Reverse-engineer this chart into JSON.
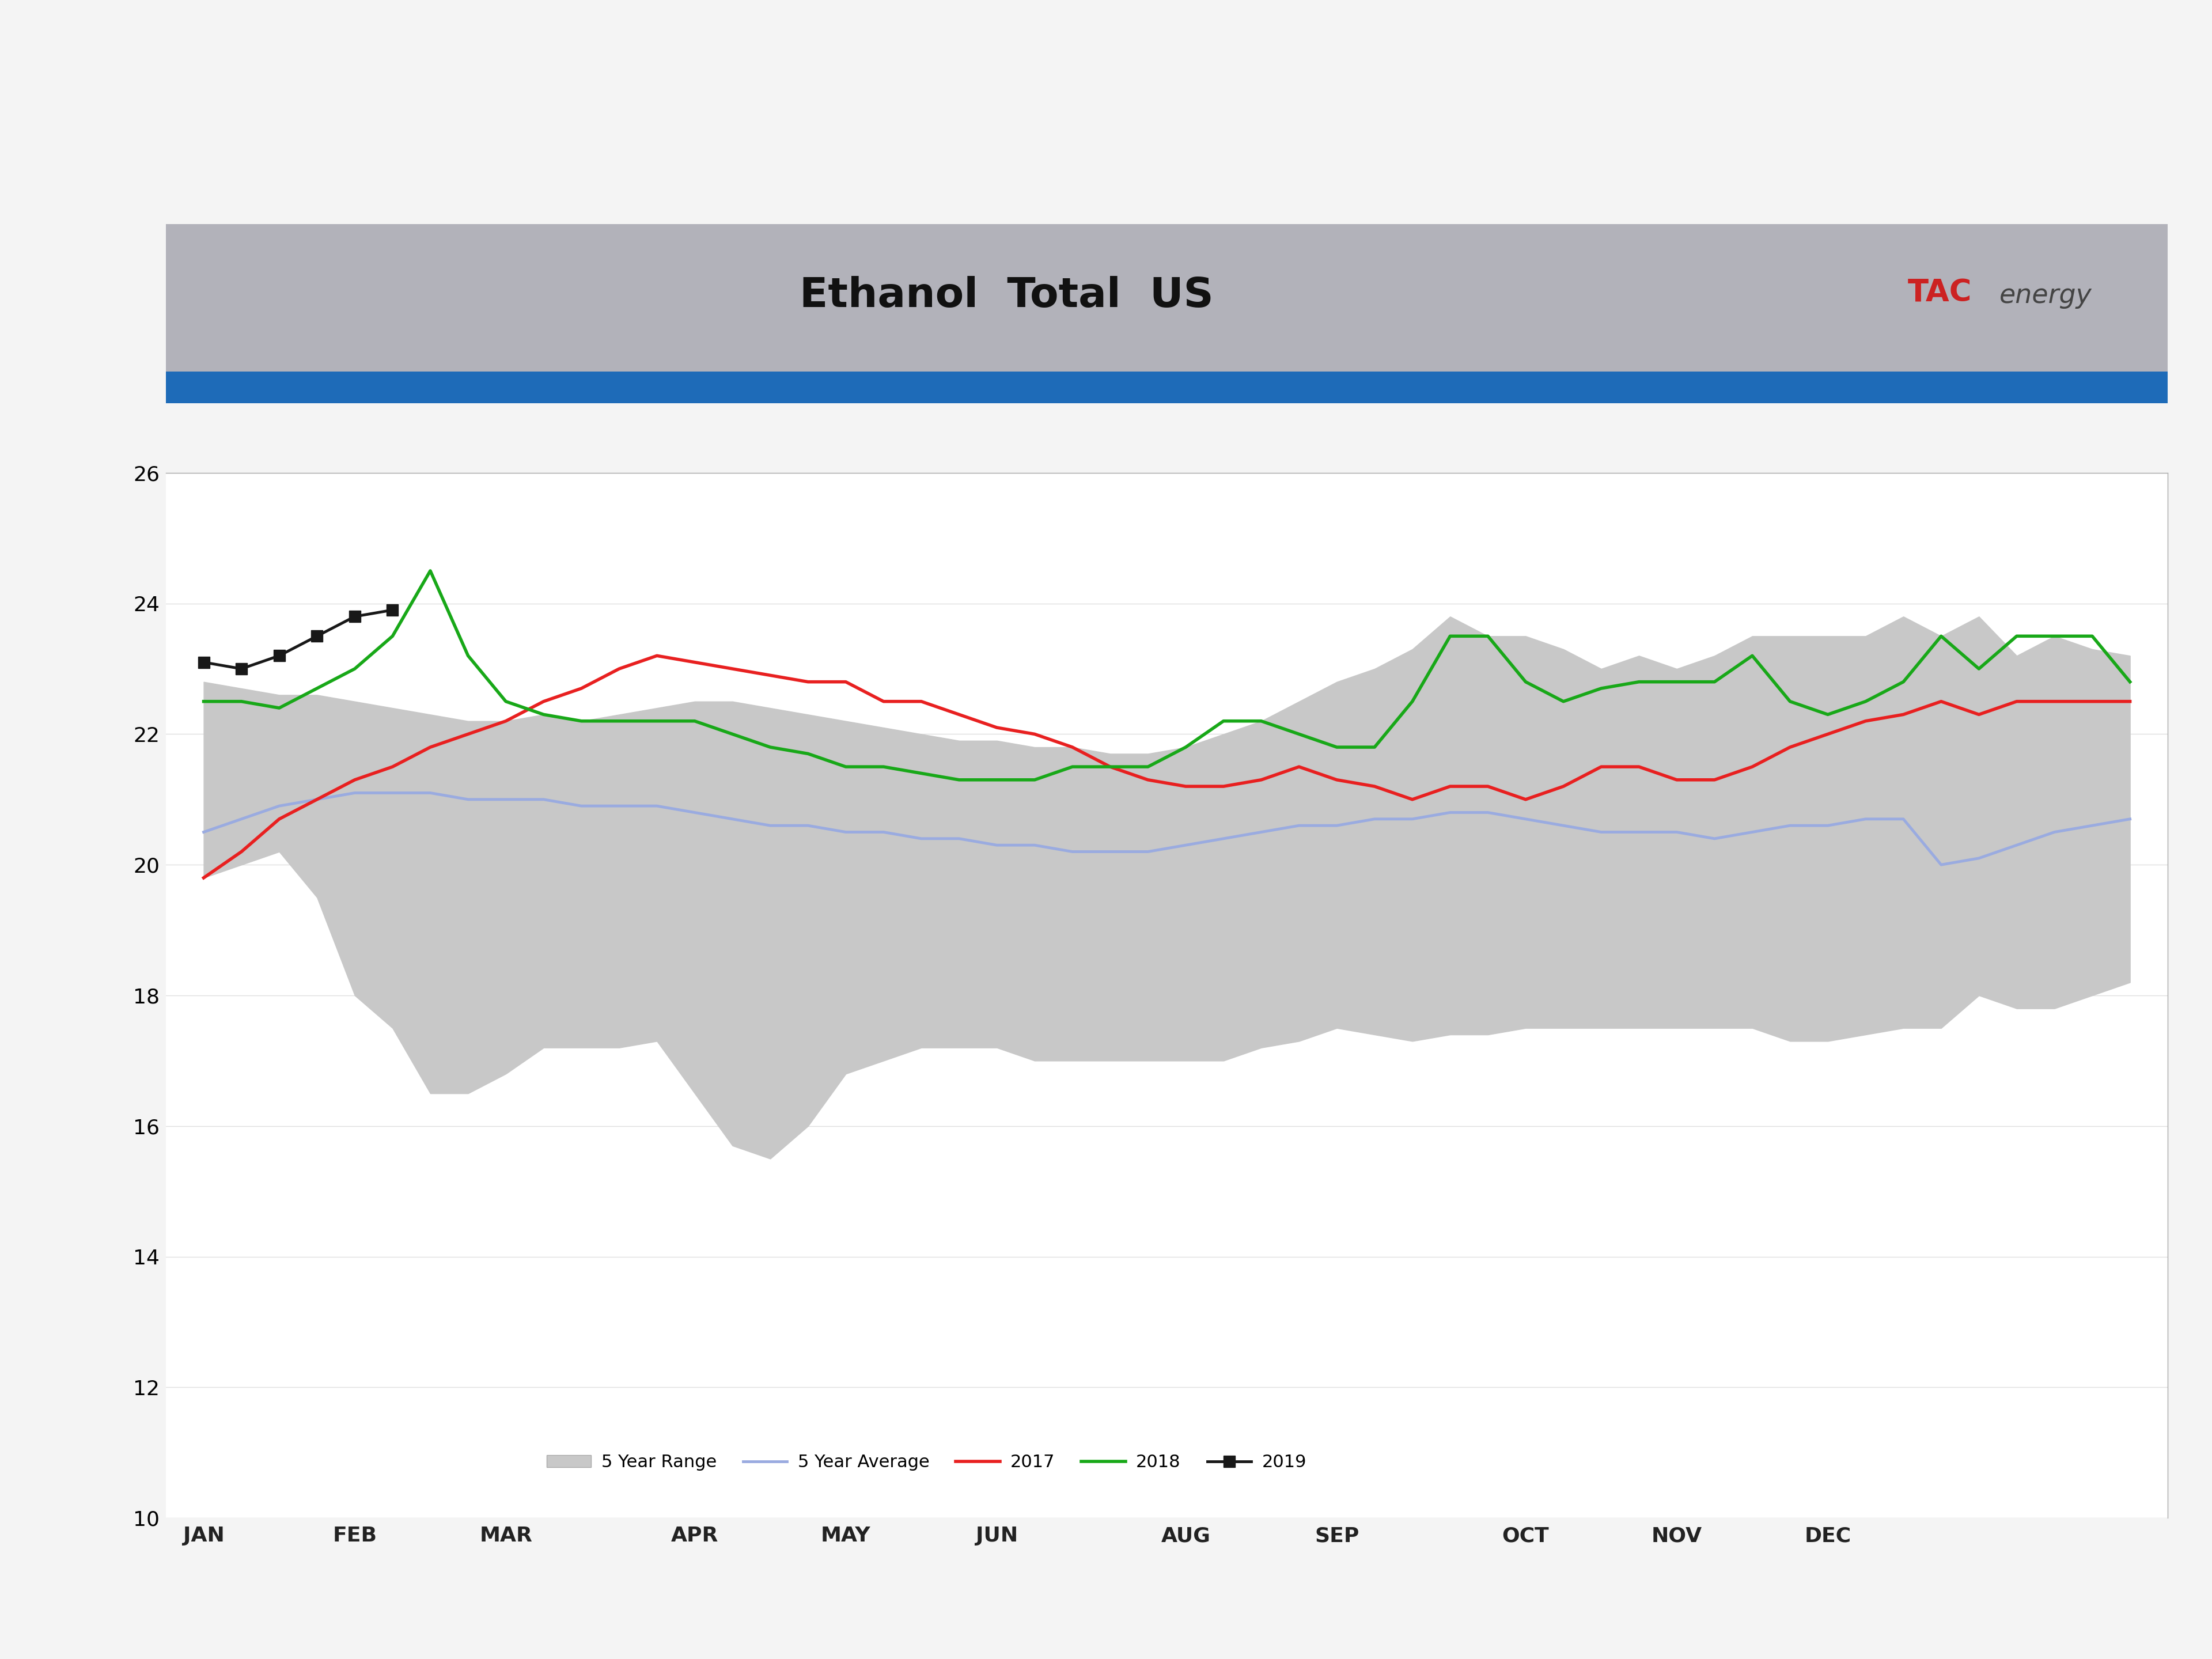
{
  "title": "Ethanol  Total  US",
  "title_bg_color": "#b0b0b8",
  "title_stripe_color": "#1e6bb8",
  "ylim": [
    10,
    26
  ],
  "yticks": [
    10,
    12,
    14,
    16,
    18,
    20,
    22,
    24,
    26
  ],
  "months": [
    "JAN",
    "FEB",
    "MAR",
    "APR",
    "MAY",
    "JUN",
    "AUG",
    "SEP",
    "OCT",
    "NOV",
    "DEC"
  ],
  "month_x_positions": [
    0,
    4,
    8,
    13,
    17,
    21,
    26,
    30,
    35,
    39,
    43
  ],
  "n_points": 52,
  "five_yr_range_upper": [
    22.8,
    22.7,
    22.6,
    22.6,
    22.5,
    22.4,
    22.3,
    22.2,
    22.2,
    22.3,
    22.2,
    22.3,
    22.4,
    22.5,
    22.5,
    22.4,
    22.3,
    22.2,
    22.1,
    22.0,
    21.9,
    21.9,
    21.8,
    21.8,
    21.7,
    21.7,
    21.8,
    22.0,
    22.2,
    22.5,
    22.8,
    23.0,
    23.3,
    23.8,
    23.5,
    23.5,
    23.3,
    23.0,
    23.2,
    23.0,
    23.2,
    23.5,
    23.5,
    23.5,
    23.5,
    23.8,
    23.5,
    23.8,
    23.2,
    23.5,
    23.3,
    23.2
  ],
  "five_yr_range_lower": [
    19.8,
    20.0,
    20.2,
    19.5,
    18.0,
    17.5,
    16.5,
    16.5,
    16.8,
    17.2,
    17.2,
    17.2,
    17.3,
    16.5,
    15.7,
    15.5,
    16.0,
    16.8,
    17.0,
    17.2,
    17.2,
    17.2,
    17.0,
    17.0,
    17.0,
    17.0,
    17.0,
    17.0,
    17.2,
    17.3,
    17.5,
    17.4,
    17.3,
    17.4,
    17.4,
    17.5,
    17.5,
    17.5,
    17.5,
    17.5,
    17.5,
    17.5,
    17.3,
    17.3,
    17.4,
    17.5,
    17.5,
    18.0,
    17.8,
    17.8,
    18.0,
    18.2
  ],
  "five_yr_avg": [
    20.5,
    20.7,
    20.9,
    21.0,
    21.1,
    21.1,
    21.1,
    21.0,
    21.0,
    21.0,
    20.9,
    20.9,
    20.9,
    20.8,
    20.7,
    20.6,
    20.6,
    20.5,
    20.5,
    20.4,
    20.4,
    20.3,
    20.3,
    20.2,
    20.2,
    20.2,
    20.3,
    20.4,
    20.5,
    20.6,
    20.6,
    20.7,
    20.7,
    20.8,
    20.8,
    20.7,
    20.6,
    20.5,
    20.5,
    20.5,
    20.4,
    20.5,
    20.6,
    20.6,
    20.7,
    20.7,
    20.0,
    20.1,
    20.3,
    20.5,
    20.6,
    20.7
  ],
  "line_2017": [
    19.8,
    20.2,
    20.7,
    21.0,
    21.3,
    21.5,
    21.8,
    22.0,
    22.2,
    22.5,
    22.7,
    23.0,
    23.2,
    23.1,
    23.0,
    22.9,
    22.8,
    22.8,
    22.5,
    22.5,
    22.3,
    22.1,
    22.0,
    21.8,
    21.5,
    21.3,
    21.2,
    21.2,
    21.3,
    21.5,
    21.3,
    21.2,
    21.0,
    21.2,
    21.2,
    21.0,
    21.2,
    21.5,
    21.5,
    21.3,
    21.3,
    21.5,
    21.8,
    22.0,
    22.2,
    22.3,
    22.5,
    22.3,
    22.5,
    22.5,
    22.5,
    22.5
  ],
  "line_2018": [
    22.5,
    22.5,
    22.4,
    22.7,
    23.0,
    23.5,
    24.5,
    23.2,
    22.5,
    22.3,
    22.2,
    22.2,
    22.2,
    22.2,
    22.0,
    21.8,
    21.7,
    21.5,
    21.5,
    21.4,
    21.3,
    21.3,
    21.3,
    21.5,
    21.5,
    21.5,
    21.8,
    22.2,
    22.2,
    22.0,
    21.8,
    21.8,
    22.5,
    23.5,
    23.5,
    22.8,
    22.5,
    22.7,
    22.8,
    22.8,
    22.8,
    23.2,
    22.5,
    22.3,
    22.5,
    22.8,
    23.5,
    23.0,
    23.5,
    23.5,
    23.5,
    22.8
  ],
  "line_2019_x": [
    0,
    1,
    2,
    3,
    4,
    5
  ],
  "line_2019_y": [
    23.1,
    23.0,
    23.2,
    23.5,
    23.8,
    23.9
  ],
  "range_color": "#c8c8c8",
  "range_edge_color": "#d8d8d8",
  "avg_color": "#9aabe0",
  "color_2017": "#e82020",
  "color_2018": "#18a818",
  "color_2019": "#181818",
  "fig_bg": "#ffffff",
  "outer_bg": "#f4f4f4",
  "title_gray": "#b2b2ba",
  "stripe_blue": "#1e6bb8"
}
